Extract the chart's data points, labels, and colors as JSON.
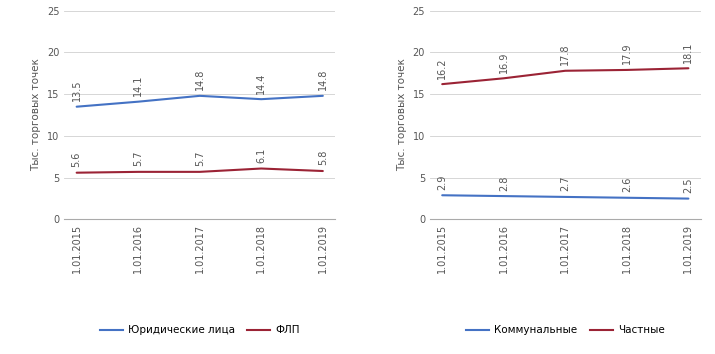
{
  "x_labels": [
    "1.01.2015",
    "1.01.2016",
    "1.01.2017",
    "1.01.2018",
    "1.01.2019"
  ],
  "left_chart": {
    "series": [
      {
        "name": "Юридические лица",
        "values": [
          13.5,
          14.1,
          14.8,
          14.4,
          14.8
        ],
        "color": "#4472C4",
        "lw": 1.5
      },
      {
        "name": "ФЛП",
        "values": [
          5.6,
          5.7,
          5.7,
          6.1,
          5.8
        ],
        "color": "#9B2335",
        "lw": 1.5
      }
    ],
    "ylabel": "Тыс. торговых точек",
    "ylim": [
      0,
      25
    ],
    "yticks": [
      0,
      5,
      10,
      15,
      20,
      25
    ]
  },
  "right_chart": {
    "series": [
      {
        "name": "Коммунальные",
        "values": [
          2.9,
          2.8,
          2.7,
          2.6,
          2.5
        ],
        "color": "#4472C4",
        "lw": 1.5
      },
      {
        "name": "Частные",
        "values": [
          16.2,
          16.9,
          17.8,
          17.9,
          18.1
        ],
        "color": "#9B2335",
        "lw": 1.5
      }
    ],
    "ylabel": "Тыс. торговых точек",
    "ylim": [
      0,
      25
    ],
    "yticks": [
      0,
      5,
      10,
      15,
      20,
      25
    ]
  },
  "annotation_fontsize": 7.0,
  "tick_fontsize": 7.0,
  "ylabel_fontsize": 7.5,
  "legend_fontsize": 7.5,
  "background_color": "#FFFFFF",
  "grid_color": "#D0D0D0",
  "spine_color": "#AAAAAA",
  "text_color": "#555555"
}
